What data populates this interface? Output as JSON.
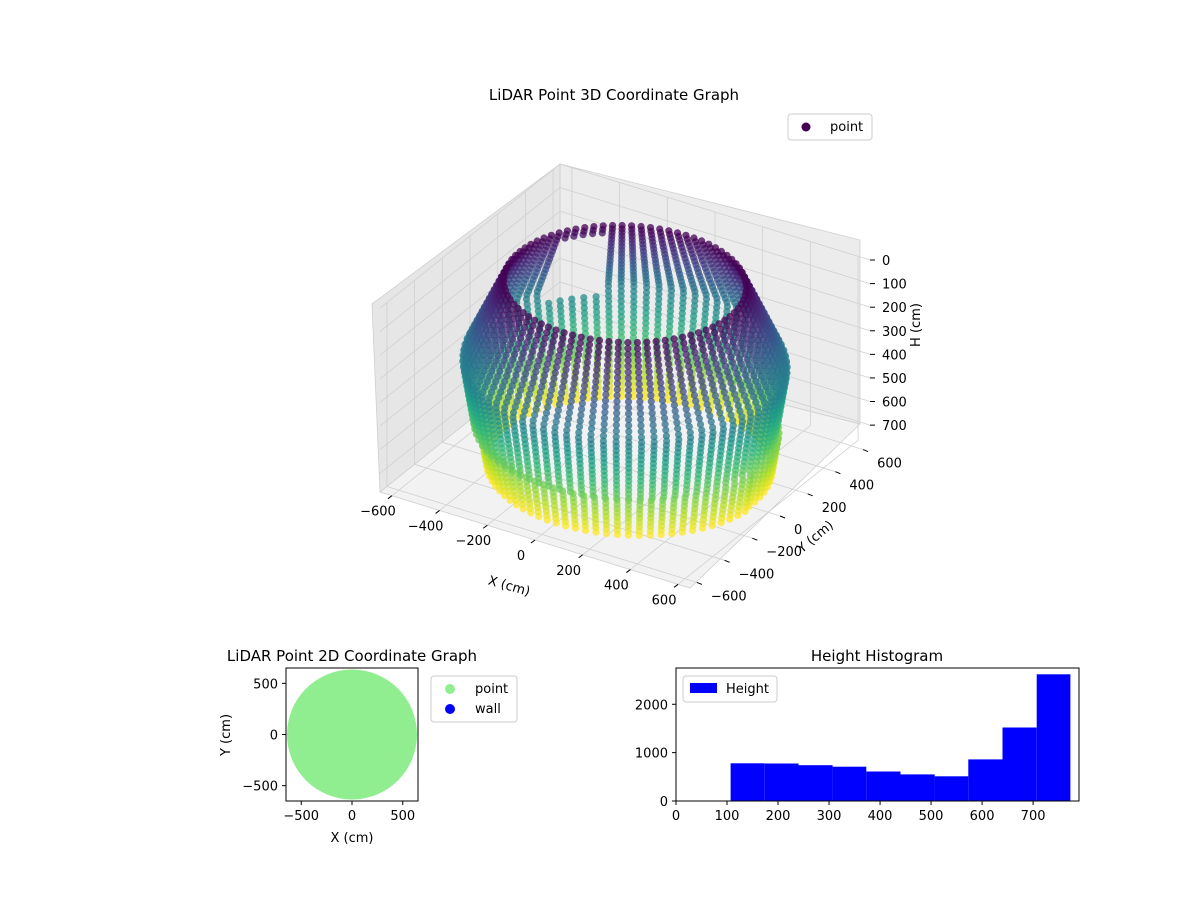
{
  "chart_data": [
    {
      "type": "scatter3d",
      "title": "LiDAR Point 3D Coordinate Graph",
      "xlabel": "X (cm)",
      "ylabel": "Y (cm)",
      "zlabel": "H (cm)",
      "xticks": [
        -600,
        -400,
        -200,
        0,
        200,
        400,
        600
      ],
      "yticks": [
        -600,
        -400,
        -200,
        0,
        200,
        400,
        600
      ],
      "zticks": [
        0,
        100,
        200,
        300,
        400,
        500,
        600,
        700
      ],
      "xlim": [
        -650,
        650
      ],
      "ylim": [
        -650,
        650
      ],
      "zlim": [
        780,
        0
      ],
      "z_inverted": true,
      "colormap": "viridis",
      "legend": {
        "entries": [
          "point"
        ],
        "placement": "top-right"
      },
      "grid": true,
      "description_of_points": "cylindrical wall of points, radius about 450 cm at top flaring to about 600 cm near 350 cm height, colored by height, with a gap near the left front"
    },
    {
      "type": "scatter",
      "title": "LiDAR Point 2D Coordinate Graph",
      "xlabel": "X (cm)",
      "ylabel": "Y (cm)",
      "xticks": [
        -500,
        0,
        500
      ],
      "yticks": [
        -500,
        0,
        500
      ],
      "xlim": [
        -650,
        650
      ],
      "ylim": [
        -650,
        650
      ],
      "filled_disc_radius": 640,
      "series": [
        {
          "name": "point",
          "color": "#90ee90"
        },
        {
          "name": "wall",
          "color": "#0000ff"
        }
      ],
      "legend": {
        "placement": "right-outside"
      }
    },
    {
      "type": "bar",
      "title": "Height Histogram",
      "xlabel": "",
      "ylabel": "",
      "xticks": [
        0,
        100,
        200,
        300,
        400,
        500,
        600,
        700
      ],
      "yticks": [
        0,
        1000,
        2000
      ],
      "xlim": [
        0,
        790
      ],
      "ylim": [
        0,
        2750
      ],
      "color": "#0000ff",
      "bin_edges": [
        107,
        173,
        240,
        307,
        373,
        440,
        507,
        573,
        640,
        707,
        773
      ],
      "values": [
        780,
        775,
        740,
        710,
        610,
        550,
        510,
        860,
        1520,
        2620
      ],
      "legend": {
        "entries": [
          "Height"
        ],
        "placement": "top-left"
      }
    }
  ]
}
